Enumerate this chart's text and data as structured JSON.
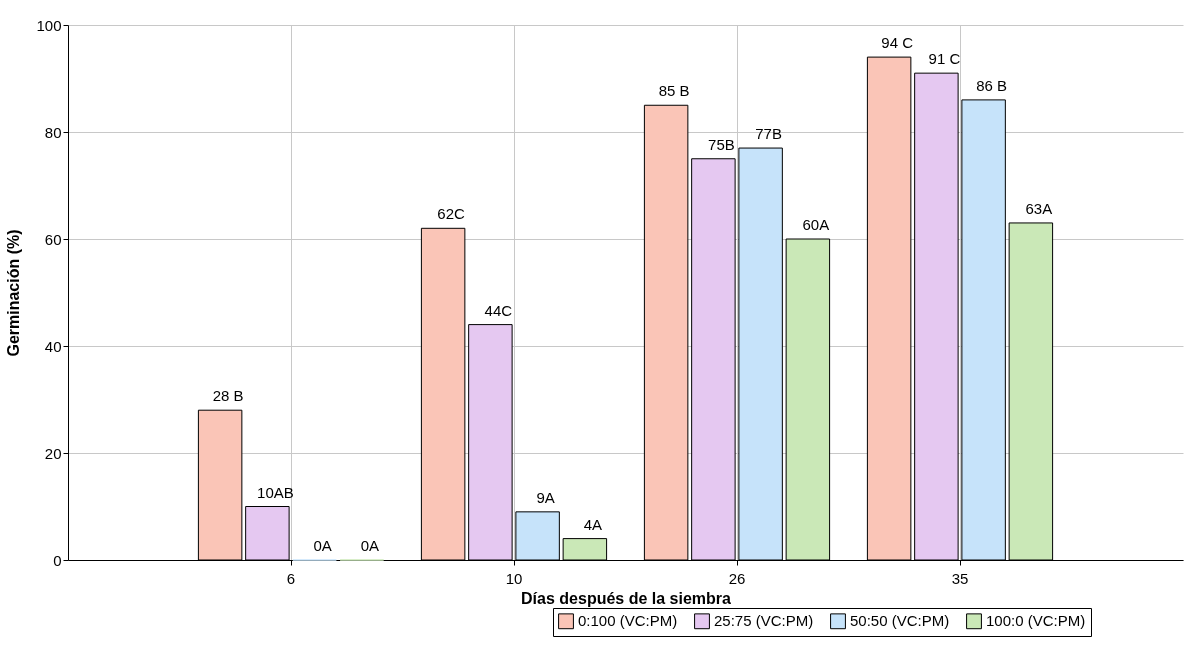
{
  "chart_data": {
    "type": "bar",
    "xlabel": "Días después de la siembra",
    "ylabel": "Germinación (%)",
    "categories": [
      "6",
      "10",
      "26",
      "35"
    ],
    "ylim": [
      0,
      100
    ],
    "yticks": [
      0,
      20,
      40,
      60,
      80,
      100
    ],
    "grid": true,
    "legend": "bottom right",
    "series": [
      {
        "name": "0:100 (VC:PM)",
        "color": "#fac5b7",
        "values": [
          28,
          62,
          85,
          94
        ],
        "value_labels": [
          "28 B",
          "62C",
          "85 B",
          "94 C"
        ]
      },
      {
        "name": "25:75 (VC:PM)",
        "color": "#e5c8f1",
        "values": [
          10,
          44,
          75,
          91
        ],
        "value_labels": [
          "10AB",
          "44C",
          "75B",
          "91 C"
        ]
      },
      {
        "name": "50:50 (VC:PM)",
        "color": "#c6e3fa",
        "values": [
          0,
          9,
          77,
          86
        ],
        "value_labels": [
          "0A",
          "9A",
          "77B",
          "86 B"
        ]
      },
      {
        "name": "100:0 (VC:PM)",
        "color": "#cae8b7",
        "values": [
          0,
          4,
          60,
          63
        ],
        "value_labels": [
          "0A",
          "4A",
          "60A",
          "63A"
        ]
      }
    ]
  }
}
